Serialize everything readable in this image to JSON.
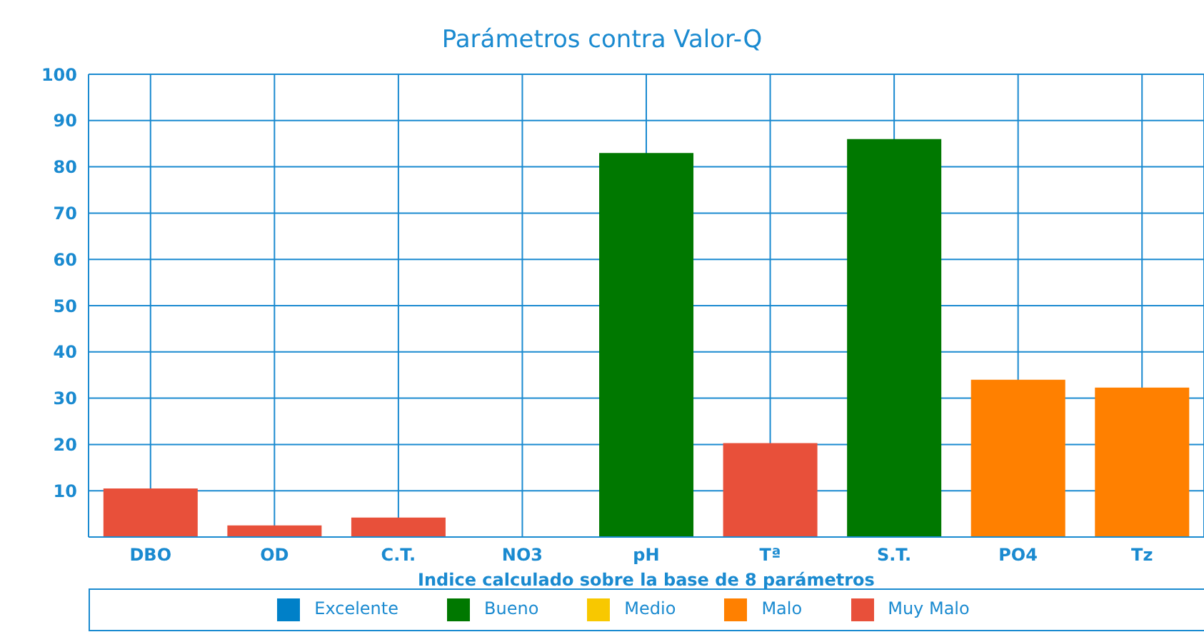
{
  "chart_data": {
    "type": "bar",
    "title": "Parámetros contra Valor-Q",
    "xlabel": "Indice calculado sobre la base de 8 parámetros",
    "categories": [
      "DBO",
      "OD",
      "C.T.",
      "NO3",
      "pH",
      "Tª",
      "S.T.",
      "PO4",
      "Tz"
    ],
    "series": [
      {
        "name": "Excelente",
        "color": "#0080c8",
        "values": [
          null,
          null,
          null,
          null,
          null,
          null,
          null,
          null,
          null
        ]
      },
      {
        "name": "Bueno",
        "color": "#007800",
        "values": [
          null,
          null,
          null,
          null,
          83,
          null,
          86,
          null,
          null
        ]
      },
      {
        "name": "Medio",
        "color": "#f8c800",
        "values": [
          null,
          null,
          null,
          null,
          null,
          null,
          null,
          null,
          null
        ]
      },
      {
        "name": "Malo",
        "color": "#ff8000",
        "values": [
          null,
          null,
          null,
          null,
          null,
          null,
          null,
          34,
          32.3
        ]
      },
      {
        "name": "Muy Malo",
        "color": "#e8503a",
        "values": [
          10.5,
          2.5,
          4.2,
          null,
          null,
          20.3,
          null,
          null,
          null
        ]
      }
    ],
    "stacked": true,
    "ylim": [
      0,
      100
    ],
    "yticks": [
      10,
      20,
      30,
      40,
      50,
      60,
      70,
      80,
      90,
      100
    ],
    "grid": true,
    "legend": "bottom"
  }
}
